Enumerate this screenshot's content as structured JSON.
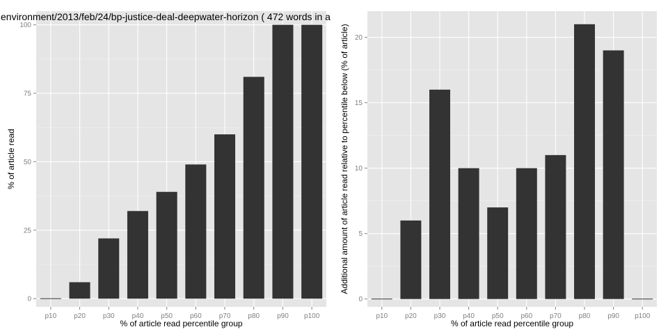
{
  "chart_data": [
    {
      "type": "bar",
      "title": "environment/2013/feb/24/bp-justice-deal-deepwater-horizon ( 472 words in a",
      "xlabel": "% of article read percentile group",
      "ylabel": "% of article read",
      "categories": [
        "p10",
        "p20",
        "p30",
        "p40",
        "p50",
        "p60",
        "p70",
        "p80",
        "p90",
        "p100"
      ],
      "values": [
        0,
        6,
        22,
        32,
        39,
        49,
        60,
        81,
        100,
        100
      ],
      "ylim": [
        -3,
        105
      ],
      "yticks": [
        0,
        25,
        50,
        75,
        100
      ],
      "grid": true,
      "bar_color": "#333333",
      "panel_color": "#e5e5e5"
    },
    {
      "type": "bar",
      "title": "",
      "xlabel": "% of article read percentile group",
      "ylabel": "Additional amount of article read relative to percentile below (% of article)",
      "categories": [
        "p10",
        "p20",
        "p30",
        "p40",
        "p50",
        "p60",
        "p70",
        "p80",
        "p90",
        "p100"
      ],
      "values": [
        0,
        6,
        16,
        10,
        7,
        10,
        11,
        21,
        19,
        0
      ],
      "ylim": [
        -0.6,
        22
      ],
      "yticks": [
        0,
        5,
        10,
        15,
        20
      ],
      "grid": true,
      "bar_color": "#333333",
      "panel_color": "#e5e5e5"
    }
  ]
}
